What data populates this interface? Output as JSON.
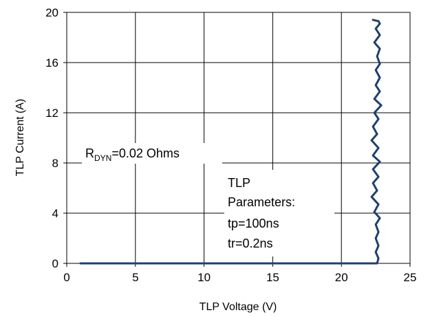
{
  "chart_data": {
    "type": "line",
    "xlabel": "TLP Voltage (V)",
    "ylabel": "TLP Current (A)",
    "xlim": [
      0,
      25
    ],
    "ylim": [
      0,
      20
    ],
    "x_ticks": [
      "0",
      "5",
      "10",
      "15",
      "20",
      "25"
    ],
    "y_ticks": [
      "0",
      "4",
      "8",
      "12",
      "16",
      "20"
    ],
    "grid": true,
    "series_color": "#1f3f6e",
    "series": [
      {
        "x": [
          1.0,
          5.0,
          10.0,
          15.0,
          20.0,
          22.6,
          22.7,
          22.5,
          22.7,
          22.5,
          22.7,
          22.5,
          22.8,
          22.4,
          22.7,
          22.2,
          22.6,
          22.3,
          22.7,
          22.3,
          22.8,
          22.3,
          22.7,
          22.2,
          22.6,
          22.3,
          22.7,
          22.4,
          22.9,
          22.4,
          22.8,
          22.5,
          22.8,
          22.5,
          22.8,
          22.6,
          22.8,
          22.4,
          22.8,
          22.5,
          22.8,
          22.7,
          22.3
        ],
        "y": [
          0.0,
          0.0,
          0.0,
          0.0,
          0.0,
          0.0,
          0.4,
          0.9,
          1.4,
          2.0,
          2.5,
          3.1,
          3.6,
          4.1,
          4.7,
          5.3,
          5.8,
          6.4,
          6.9,
          7.5,
          8.1,
          8.6,
          9.2,
          9.8,
          10.3,
          10.9,
          11.5,
          12.0,
          12.6,
          13.1,
          13.7,
          14.2,
          14.8,
          15.4,
          15.9,
          16.5,
          17.1,
          17.6,
          18.2,
          18.7,
          19.1,
          19.3,
          19.4
        ]
      }
    ],
    "annotations": {
      "rdyn_prefix": "R",
      "rdyn_sub": "DYN",
      "rdyn_value": "=0.02  Ohms",
      "tlp_lines": [
        "TLP",
        "Parameters:",
        "tp=100ns",
        "tr=0.2ns"
      ]
    }
  }
}
